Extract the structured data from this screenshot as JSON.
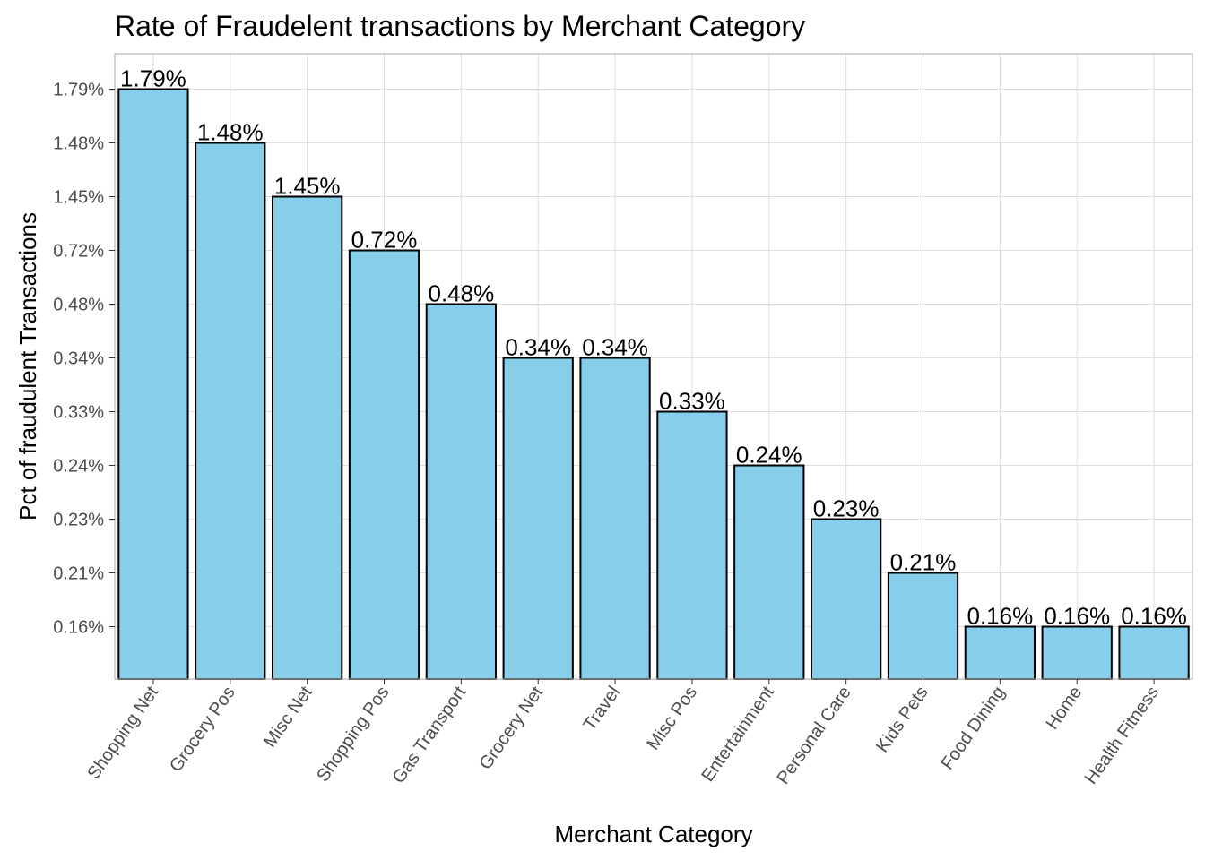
{
  "chart_data": {
    "type": "bar",
    "title": "Rate of Fraudelent transactions by Merchant Category",
    "xlabel": "Merchant Category",
    "ylabel": "Pct of fraudulent Transactions",
    "categories": [
      "Shopping Net",
      "Grocery Pos",
      "Misc Net",
      "Shopping Pos",
      "Gas Transport",
      "Grocery Net",
      "Travel",
      "Misc Pos",
      "Entertainment",
      "Personal Care",
      "Kids Pets",
      "Food Dining",
      "Home",
      "Health Fitness"
    ],
    "values": [
      1.79,
      1.48,
      1.45,
      0.72,
      0.48,
      0.34,
      0.34,
      0.33,
      0.24,
      0.23,
      0.21,
      0.16,
      0.16,
      0.16
    ],
    "value_labels": [
      "1.79%",
      "1.48%",
      "1.45%",
      "0.72%",
      "0.48%",
      "0.34%",
      "0.34%",
      "0.33%",
      "0.24%",
      "0.23%",
      "0.21%",
      "0.16%",
      "0.16%",
      "0.16%"
    ],
    "y_axis_scale": "categorical (each distinct rate is its own evenly spaced level)",
    "y_ticks": [
      "0.16%",
      "0.21%",
      "0.23%",
      "0.24%",
      "0.33%",
      "0.34%",
      "0.48%",
      "0.72%",
      "1.45%",
      "1.48%",
      "1.79%"
    ],
    "bar_color": "#87ceeb",
    "bar_border_color": "#000000",
    "grid": true,
    "legend": "none"
  }
}
